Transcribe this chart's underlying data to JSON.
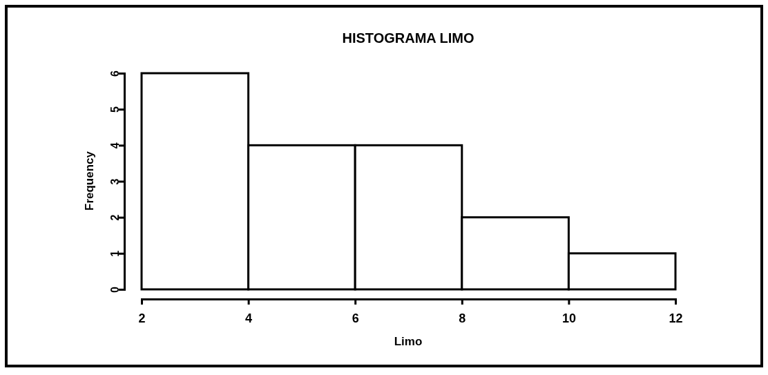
{
  "chart_data": {
    "type": "histogram",
    "title": "HISTOGRAMA LIMO",
    "xlabel": "Limo",
    "ylabel": "Frequency",
    "bins": [
      2,
      4,
      6,
      8,
      10,
      12
    ],
    "values": [
      6,
      4,
      4,
      2,
      1
    ],
    "color": "#ffffff",
    "xlim": [
      2,
      12
    ],
    "xticks": [
      2,
      4,
      6,
      8,
      10,
      12
    ],
    "ylim": [
      0,
      6
    ],
    "yticks": [
      0,
      1,
      2,
      3,
      4,
      5,
      6
    ],
    "grid": false
  }
}
